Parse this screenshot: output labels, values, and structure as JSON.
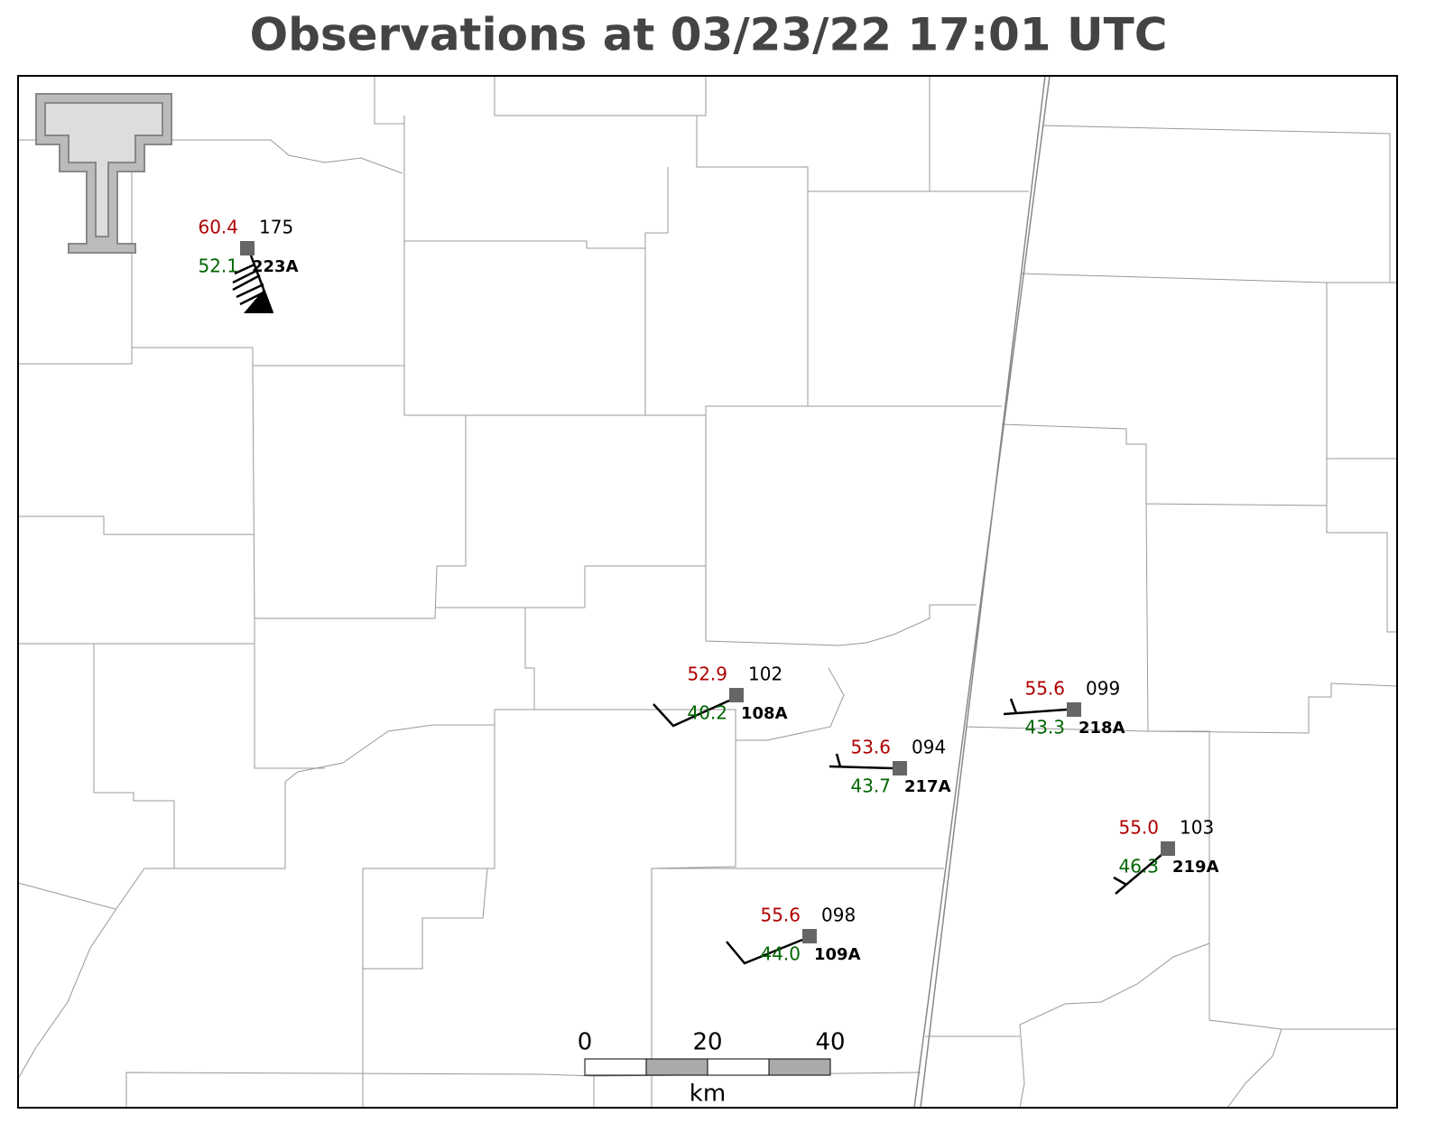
{
  "title": "Observations at 03/23/22 17:01 UTC",
  "stations": [
    {
      "id": "223A",
      "temperature": "60.4",
      "dewpoint": "52.1",
      "pressure": "175"
    },
    {
      "id": "108A",
      "temperature": "52.9",
      "dewpoint": "40.2",
      "pressure": "102"
    },
    {
      "id": "217A",
      "temperature": "53.6",
      "dewpoint": "43.7",
      "pressure": "094"
    },
    {
      "id": "218A",
      "temperature": "55.6",
      "dewpoint": "43.3",
      "pressure": "099"
    },
    {
      "id": "219A",
      "temperature": "55.0",
      "dewpoint": "46.3",
      "pressure": "103"
    },
    {
      "id": "109A",
      "temperature": "55.6",
      "dewpoint": "44.0",
      "pressure": "098"
    }
  ],
  "scale_bar": {
    "ticks": [
      "0",
      "20",
      "40"
    ],
    "unit": "km"
  }
}
